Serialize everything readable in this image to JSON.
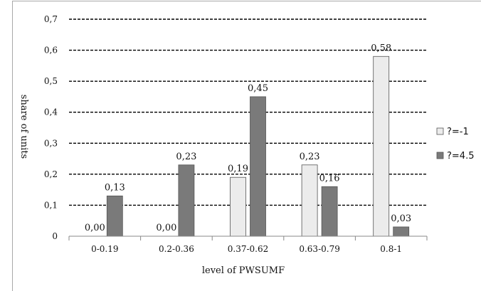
{
  "chart_data": {
    "type": "bar",
    "title": "",
    "xlabel": "level of PWSUMF",
    "ylabel": "share of units",
    "categories": [
      "0-0.19",
      "0.2-0.36",
      "0.37-0.62",
      "0.63-0.79",
      "0.8-1"
    ],
    "series": [
      {
        "name": "?=-1",
        "color": "#ececec",
        "values": [
          0.0,
          0.0,
          0.19,
          0.23,
          0.58
        ],
        "labels": [
          "0,00",
          "0,00",
          "0,19",
          "0,23",
          "0,58"
        ]
      },
      {
        "name": "?=4.5",
        "color": "#7a7a7a",
        "values": [
          0.13,
          0.23,
          0.45,
          0.16,
          0.03
        ],
        "labels": [
          "0,13",
          "0,23",
          "0,45",
          "0,16",
          "0,03"
        ]
      }
    ],
    "yticks": [
      0,
      0.1,
      0.2,
      0.3,
      0.4,
      0.5,
      0.6,
      0.7
    ],
    "ytick_labels": [
      "0",
      "0,1",
      "0,2",
      "0,3",
      "0,4",
      "0,5",
      "0,6",
      "0,7"
    ],
    "ylim": [
      0,
      0.7
    ],
    "grid": true,
    "grid_style": "dashed",
    "legend_position": "right"
  }
}
